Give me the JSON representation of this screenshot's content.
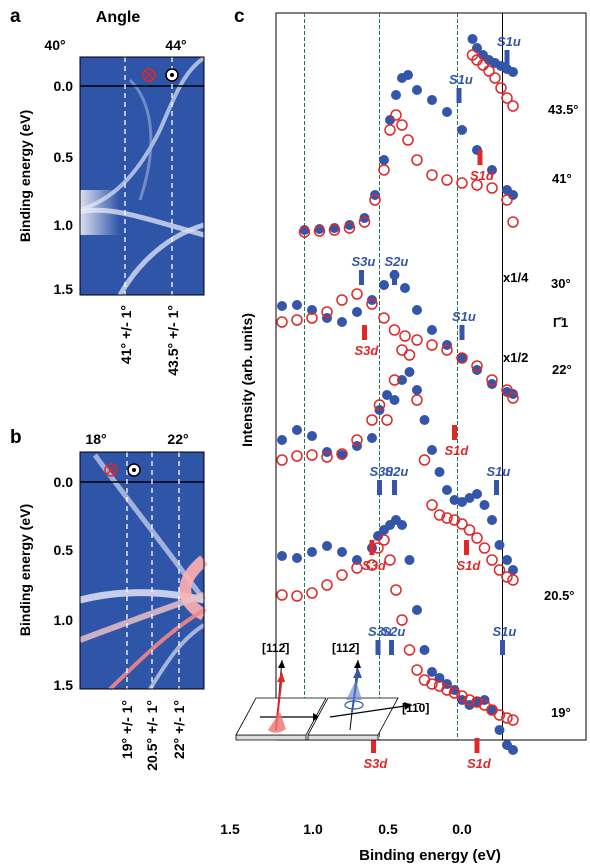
{
  "panels": {
    "a": {
      "letter": "a",
      "top_axis_label": "Angle",
      "top_ticks": [
        "40°",
        "44°"
      ],
      "ylabel": "Binding energy (eV)",
      "yticks": [
        "0.0",
        "0.5",
        "1.0",
        "1.5"
      ],
      "cut_labels": [
        "41° +/- 1°",
        "43.5° +/- 1°"
      ]
    },
    "b": {
      "letter": "b",
      "top_ticks": [
        "18°",
        "22°"
      ],
      "ylabel": "Binding energy (eV)",
      "yticks": [
        "0.0",
        "0.5",
        "1.0",
        "1.5"
      ],
      "cut_labels": [
        "19° +/- 1°",
        "20.5° +/- 1°",
        "22° +/- 1°"
      ]
    },
    "c": {
      "letter": "c",
      "ylabel": "Intensity (arb. units)",
      "xlabel": "Binding energy (eV)",
      "xticks": [
        "1.5",
        "1.0",
        "0.5",
        "0.0"
      ],
      "curve_labels": [
        "43.5°",
        "41°",
        "30°",
        "22°",
        "20.5°",
        "19°"
      ],
      "gamma_label": "Γ̄1",
      "scale_labels": [
        "x1/4",
        "x1/2"
      ],
      "peak_labels": {
        "s1u": "S1u",
        "s1d": "S1d",
        "s2u": "S2u",
        "s3u": "S3u",
        "s3d": "S3d"
      },
      "inset_labels": [
        "[112̄]",
        "[112̄]",
        "[11̄0]"
      ]
    }
  },
  "colors": {
    "spin_up": "#3355aa",
    "spin_down": "#e02828",
    "map_bg": "#2f55a8",
    "guide": "#1a7a4a"
  },
  "chart_data": {
    "type": "scatter",
    "xlabel": "Binding energy (eV)",
    "ylabel": "Intensity (arb. units)",
    "x_reversed": true,
    "xlim": [
      1.2,
      -0.35
    ],
    "xticks": [
      1.5,
      1.0,
      0.5,
      0.0
    ],
    "vertical_guides": [
      1.05,
      0.55,
      0.03,
      -0.27
    ],
    "series": [
      {
        "name": "43.5°",
        "spin": "up",
        "x": [
          -0.07,
          -0.1,
          -0.14,
          -0.18,
          -0.22,
          -0.26,
          -0.3,
          -0.34
        ],
        "y": [
          39,
          48,
          55,
          60,
          63,
          66,
          69,
          72
        ]
      },
      {
        "name": "43.5°",
        "spin": "down",
        "x": [
          -0.07,
          -0.1,
          -0.14,
          -0.18,
          -0.22,
          -0.26,
          -0.3,
          -0.34
        ],
        "y": [
          55,
          60,
          65,
          71,
          78,
          88,
          98,
          106
        ]
      },
      {
        "name": "41°",
        "spin": "up",
        "x": [
          1.05,
          0.95,
          0.85,
          0.75,
          0.65,
          0.58,
          0.52,
          0.48,
          0.44,
          0.4,
          0.36,
          0.3,
          0.2,
          0.1,
          0.0,
          -0.1,
          -0.2,
          -0.3,
          -0.34
        ],
        "y": [
          230,
          229,
          228,
          225,
          218,
          195,
          160,
          120,
          95,
          78,
          75,
          90,
          100,
          112,
          130,
          150,
          170,
          190,
          195
        ]
      },
      {
        "name": "41°",
        "spin": "down",
        "x": [
          1.05,
          0.95,
          0.85,
          0.75,
          0.65,
          0.58,
          0.52,
          0.48,
          0.44,
          0.4,
          0.36,
          0.3,
          0.2,
          0.1,
          0.0,
          -0.1,
          -0.2,
          -0.3,
          -0.34
        ],
        "y": [
          232,
          231,
          230,
          228,
          222,
          200,
          170,
          130,
          115,
          125,
          140,
          160,
          175,
          180,
          183,
          185,
          188,
          200,
          222
        ]
      },
      {
        "name": "30°",
        "spin": "up",
        "x": [
          1.2,
          1.1,
          1.0,
          0.9,
          0.8,
          0.7,
          0.6,
          0.52,
          0.45,
          0.38,
          0.3,
          0.2,
          0.1,
          0.0,
          -0.1,
          -0.2,
          -0.3,
          -0.34
        ],
        "y": [
          306,
          305,
          310,
          318,
          322,
          312,
          300,
          285,
          275,
          288,
          310,
          330,
          345,
          358,
          370,
          384,
          392,
          394
        ]
      },
      {
        "name": "30°",
        "spin": "down",
        "x": [
          1.2,
          1.1,
          1.0,
          0.9,
          0.8,
          0.7,
          0.6,
          0.52,
          0.45,
          0.38,
          0.3,
          0.2,
          0.1,
          0.0,
          -0.1,
          -0.2,
          -0.3,
          -0.34
        ],
        "y": [
          322,
          320,
          318,
          312,
          300,
          294,
          304,
          318,
          330,
          336,
          340,
          345,
          350,
          358,
          366,
          380,
          390,
          398
        ]
      },
      {
        "name": "22°",
        "spin": "up",
        "x": [
          1.2,
          1.1,
          1.0,
          0.9,
          0.8,
          0.7,
          0.6,
          0.55,
          0.5,
          0.45,
          0.4,
          0.35,
          0.3,
          0.25,
          0.2,
          0.15,
          0.1,
          0.05,
          0.0,
          -0.05,
          -0.1,
          -0.15,
          -0.2,
          -0.25,
          -0.3,
          -0.34
        ],
        "y": [
          440,
          430,
          436,
          452,
          455,
          446,
          438,
          410,
          395,
          400,
          380,
          372,
          390,
          420,
          450,
          472,
          490,
          500,
          502,
          498,
          494,
          505,
          520,
          545,
          560,
          570
        ]
      },
      {
        "name": "22°",
        "spin": "down",
        "x": [
          1.2,
          1.1,
          1.0,
          0.9,
          0.8,
          0.7,
          0.6,
          0.55,
          0.5,
          0.45,
          0.4,
          0.35,
          0.3,
          0.25,
          0.2,
          0.15,
          0.1,
          0.05,
          0.0,
          -0.05,
          -0.1,
          -0.15,
          -0.2,
          -0.25,
          -0.3,
          -0.34
        ],
        "y": [
          460,
          456,
          455,
          457,
          454,
          440,
          420,
          405,
          420,
          380,
          350,
          355,
          400,
          460,
          505,
          515,
          518,
          520,
          524,
          530,
          538,
          548,
          560,
          570,
          577,
          580
        ]
      },
      {
        "name": "20.5°",
        "spin": "up",
        "x": [
          1.2,
          1.1,
          1.0,
          0.9,
          0.8,
          0.7,
          0.6,
          0.56,
          0.52,
          0.48,
          0.44,
          0.4,
          0.35,
          0.3,
          0.25,
          0.2,
          0.15,
          0.1,
          0.05,
          0.0,
          -0.05,
          -0.1,
          -0.15,
          -0.2,
          -0.25,
          -0.3,
          -0.34
        ],
        "y": [
          556,
          558,
          552,
          546,
          552,
          560,
          548,
          536,
          530,
          525,
          520,
          525,
          560,
          610,
          650,
          672,
          678,
          684,
          690,
          700,
          705,
          702,
          700,
          710,
          730,
          745,
          750
        ]
      },
      {
        "name": "20.5°",
        "spin": "down",
        "x": [
          1.2,
          1.1,
          1.0,
          0.9,
          0.8,
          0.7,
          0.6,
          0.56,
          0.52,
          0.48,
          0.44,
          0.4,
          0.35,
          0.3,
          0.25,
          0.2,
          0.15,
          0.1,
          0.05,
          0.0,
          -0.05,
          -0.1,
          -0.15,
          -0.2,
          -0.25,
          -0.3,
          -0.34
        ],
        "y": [
          595,
          596,
          593,
          585,
          575,
          568,
          565,
          548,
          540,
          560,
          590,
          620,
          650,
          670,
          680,
          684,
          686,
          690,
          693,
          696,
          700,
          702,
          705,
          710,
          715,
          718,
          720
        ]
      }
    ],
    "peak_markers": [
      {
        "curve": "43.5°",
        "label": "S1u",
        "x": -0.3,
        "spin": "up"
      },
      {
        "curve": "41°",
        "label": "S1u",
        "x": 0.02,
        "spin": "up"
      },
      {
        "curve": "41°",
        "label": "S1d",
        "x": -0.12,
        "spin": "down"
      },
      {
        "curve": "30°",
        "label": "S3u",
        "x": 0.67,
        "spin": "up"
      },
      {
        "curve": "30°",
        "label": "S2u",
        "x": 0.45,
        "spin": "up"
      },
      {
        "curve": "30°",
        "label": "S3d",
        "x": 0.65,
        "spin": "down"
      },
      {
        "curve": "22°",
        "label": "S1u",
        "x": 0.0,
        "spin": "up"
      },
      {
        "curve": "22°",
        "label": "S1d",
        "x": 0.05,
        "spin": "down"
      },
      {
        "curve": "20.5°",
        "label": "S3u",
        "x": 0.55,
        "spin": "up"
      },
      {
        "curve": "20.5°",
        "label": "S2u",
        "x": 0.45,
        "spin": "up"
      },
      {
        "curve": "20.5°",
        "label": "S3d",
        "x": 0.6,
        "spin": "down"
      },
      {
        "curve": "20.5°",
        "label": "S1u",
        "x": -0.23,
        "spin": "up"
      },
      {
        "curve": "20.5°",
        "label": "S1d",
        "x": -0.03,
        "spin": "down"
      },
      {
        "curve": "19°",
        "label": "S3u",
        "x": 0.56,
        "spin": "up"
      },
      {
        "curve": "19°",
        "label": "S2u",
        "x": 0.47,
        "spin": "up"
      },
      {
        "curve": "19°",
        "label": "S3d",
        "x": 0.59,
        "spin": "down"
      },
      {
        "curve": "19°",
        "label": "S1u",
        "x": -0.27,
        "spin": "up"
      },
      {
        "curve": "19°",
        "label": "S1d",
        "x": -0.1,
        "spin": "down"
      }
    ]
  }
}
